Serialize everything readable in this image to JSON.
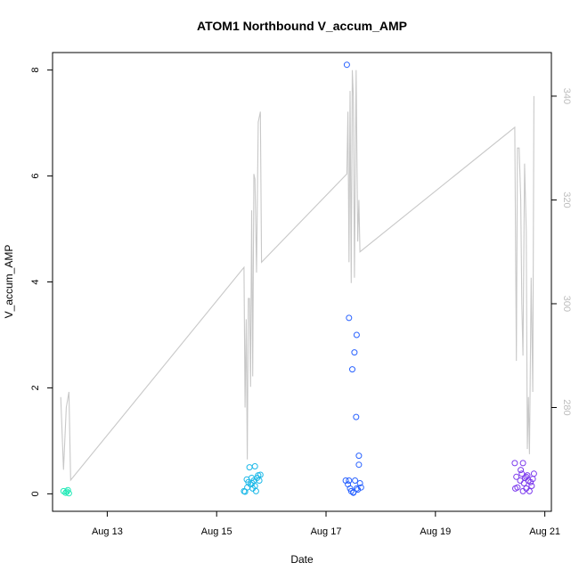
{
  "chart_data": {
    "type": "scatter",
    "title": "ATOM1 Northbound V_accum_AMP",
    "xlabel": "Date",
    "ylabel": "V_accum_AMP",
    "ylabel_right": "",
    "x_ticks": [
      "Aug 13",
      "Aug 15",
      "Aug 17",
      "Aug 19",
      "Aug 21"
    ],
    "x_tick_values": [
      13,
      15,
      17,
      19,
      21
    ],
    "xlim": [
      12.0,
      21.12
    ],
    "ylim": [
      -0.33,
      8.33
    ],
    "y_ticks": [
      0,
      2,
      4,
      6,
      8
    ],
    "y_right_ticks": [
      280,
      300,
      320,
      340
    ],
    "y_right_lim": [
      260.0,
      348.4
    ],
    "grid": false,
    "legend": "none",
    "series": [
      {
        "color": "#1de9b6",
        "points": [
          [
            12.2,
            0.05
          ],
          [
            12.24,
            0.02
          ],
          [
            12.28,
            0.07
          ],
          [
            12.3,
            0.01
          ],
          [
            12.26,
            0.04
          ]
        ]
      },
      {
        "color": "#1ab8e8",
        "points": [
          [
            15.5,
            0.05
          ],
          [
            15.52,
            0.04
          ],
          [
            15.55,
            0.27
          ],
          [
            15.58,
            0.22
          ],
          [
            15.6,
            0.5
          ],
          [
            15.62,
            0.18
          ],
          [
            15.64,
            0.3
          ],
          [
            15.66,
            0.1
          ],
          [
            15.68,
            0.25
          ],
          [
            15.7,
            0.52
          ],
          [
            15.72,
            0.05
          ],
          [
            15.74,
            0.3
          ],
          [
            15.76,
            0.35
          ],
          [
            15.78,
            0.25
          ],
          [
            15.8,
            0.36
          ],
          [
            15.56,
            0.12
          ],
          [
            15.65,
            0.2
          ],
          [
            15.7,
            0.15
          ]
        ]
      },
      {
        "color": "#2962ff",
        "points": [
          [
            17.38,
            8.1
          ],
          [
            17.42,
            3.32
          ],
          [
            17.48,
            2.35
          ],
          [
            17.52,
            2.67
          ],
          [
            17.56,
            3.0
          ],
          [
            17.55,
            1.45
          ],
          [
            17.6,
            0.72
          ],
          [
            17.6,
            0.55
          ],
          [
            17.36,
            0.25
          ],
          [
            17.4,
            0.18
          ],
          [
            17.44,
            0.1
          ],
          [
            17.46,
            0.05
          ],
          [
            17.5,
            0.02
          ],
          [
            17.53,
            0.25
          ],
          [
            17.58,
            0.08
          ],
          [
            17.62,
            0.2
          ],
          [
            17.64,
            0.12
          ],
          [
            17.42,
            0.25
          ],
          [
            17.5,
            0.03
          ],
          [
            17.56,
            0.1
          ]
        ]
      },
      {
        "color": "#7c3aed",
        "points": [
          [
            20.45,
            0.58
          ],
          [
            20.5,
            0.12
          ],
          [
            20.48,
            0.32
          ],
          [
            20.55,
            0.25
          ],
          [
            20.58,
            0.38
          ],
          [
            20.6,
            0.58
          ],
          [
            20.62,
            0.2
          ],
          [
            20.64,
            0.3
          ],
          [
            20.66,
            0.1
          ],
          [
            20.68,
            0.35
          ],
          [
            20.7,
            0.25
          ],
          [
            20.72,
            0.05
          ],
          [
            20.74,
            0.22
          ],
          [
            20.76,
            0.15
          ],
          [
            20.78,
            0.28
          ],
          [
            20.46,
            0.1
          ],
          [
            20.56,
            0.45
          ],
          [
            20.66,
            0.32
          ],
          [
            20.8,
            0.38
          ],
          [
            20.6,
            0.05
          ]
        ]
      }
    ],
    "line_series": {
      "color": "#c8c8c8",
      "axis": "right",
      "points": [
        [
          12.15,
          282
        ],
        [
          12.2,
          268
        ],
        [
          12.25,
          280
        ],
        [
          12.3,
          283
        ],
        [
          12.33,
          266
        ],
        [
          15.5,
          307
        ],
        [
          15.52,
          280
        ],
        [
          15.54,
          297
        ],
        [
          15.56,
          270
        ],
        [
          15.58,
          301
        ],
        [
          15.6,
          301
        ],
        [
          15.62,
          284
        ],
        [
          15.64,
          318
        ],
        [
          15.66,
          286
        ],
        [
          15.68,
          325
        ],
        [
          15.7,
          324
        ],
        [
          15.73,
          306
        ],
        [
          15.76,
          335
        ],
        [
          15.8,
          337
        ],
        [
          15.82,
          308
        ],
        [
          17.38,
          325
        ],
        [
          17.4,
          337
        ],
        [
          17.42,
          308
        ],
        [
          17.44,
          341
        ],
        [
          17.46,
          304
        ],
        [
          17.48,
          345
        ],
        [
          17.5,
          340
        ],
        [
          17.52,
          305
        ],
        [
          17.55,
          345
        ],
        [
          17.58,
          312
        ],
        [
          17.6,
          320
        ],
        [
          17.62,
          310
        ],
        [
          20.45,
          334
        ],
        [
          20.48,
          289
        ],
        [
          20.5,
          330
        ],
        [
          20.53,
          330
        ],
        [
          20.56,
          320
        ],
        [
          20.58,
          300
        ],
        [
          20.6,
          290
        ],
        [
          20.63,
          327
        ],
        [
          20.66,
          314
        ],
        [
          20.68,
          272
        ],
        [
          20.7,
          282
        ],
        [
          20.72,
          271
        ],
        [
          20.75,
          305
        ],
        [
          20.78,
          283
        ],
        [
          20.8,
          340
        ]
      ]
    }
  }
}
